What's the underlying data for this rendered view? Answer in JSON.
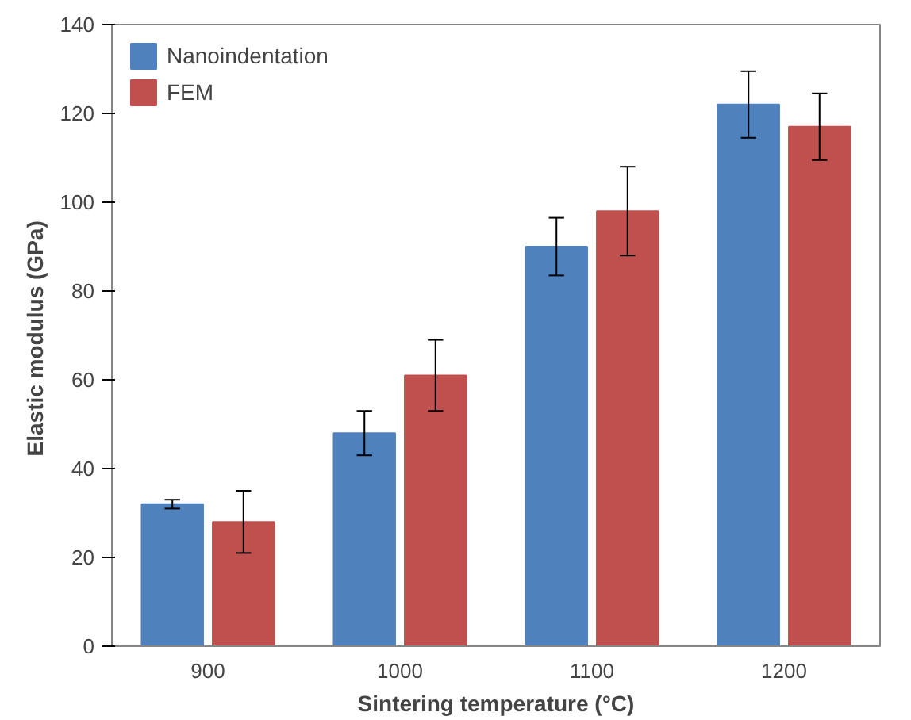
{
  "chart_data": {
    "type": "bar",
    "xlabel": "Sintering temperature (°C)",
    "ylabel": "Elastic modulus  (GPa)",
    "categories": [
      "900",
      "1000",
      "1100",
      "1200"
    ],
    "series": [
      {
        "name": "Nanoindentation",
        "color": "#4f81bd",
        "values": [
          32,
          48,
          90,
          122
        ],
        "errors": [
          1,
          5,
          6.5,
          7.5
        ]
      },
      {
        "name": "FEM",
        "color": "#c0504d",
        "values": [
          28,
          61,
          98,
          117
        ],
        "errors": [
          7,
          8,
          10,
          7.5
        ]
      }
    ],
    "ylim": [
      0,
      140
    ],
    "yticks": [
      0,
      20,
      40,
      60,
      80,
      100,
      120,
      140
    ],
    "grid": false,
    "legend": "top left"
  }
}
